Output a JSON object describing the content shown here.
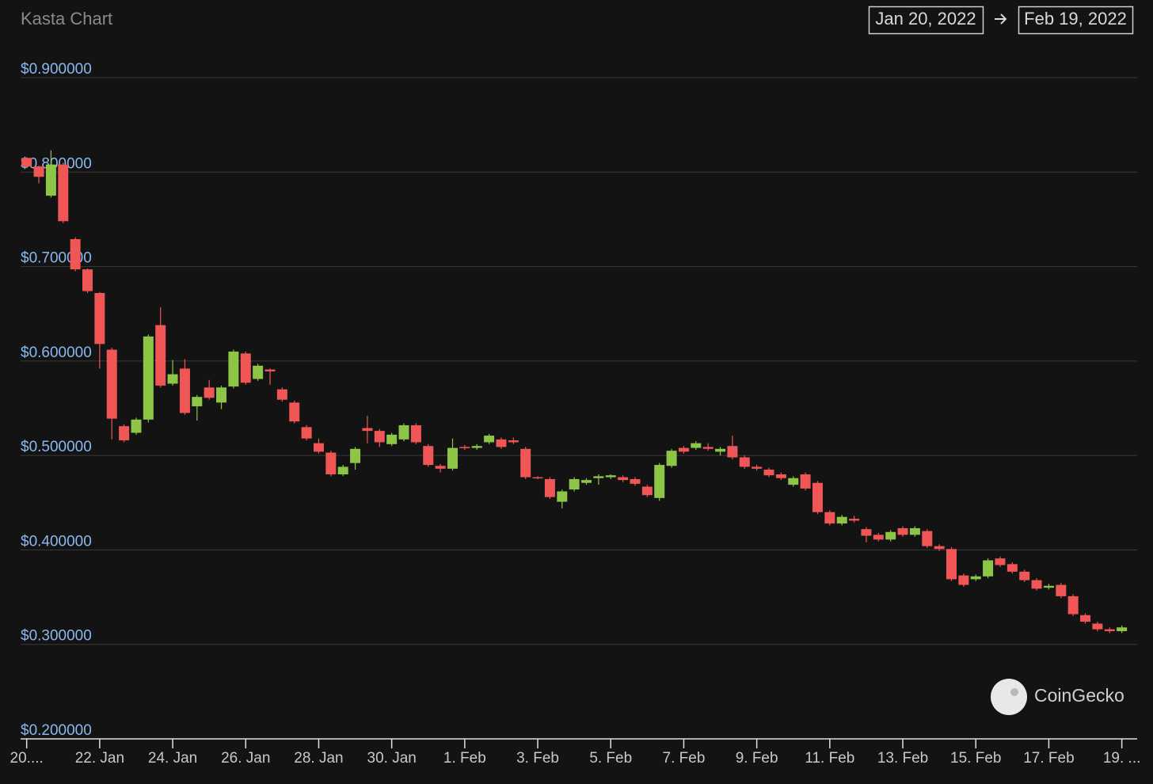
{
  "chart_data": {
    "type": "candlestick",
    "title": "Kasta Chart",
    "date_from": "Jan 20, 2022",
    "date_to": "Feb 19, 2022",
    "watermark": "CoinGecko",
    "up_color": "#8dc647",
    "down_color": "#f05656",
    "grid": true,
    "x": [
      0,
      8,
      16,
      24,
      32,
      40,
      48,
      56,
      64,
      72,
      80,
      88,
      96,
      104,
      112,
      120,
      128,
      136,
      144,
      152,
      160,
      168,
      176,
      184,
      192,
      200,
      208,
      216,
      224,
      232,
      240,
      248,
      256,
      264,
      272,
      280,
      288,
      296,
      304,
      312,
      320,
      328,
      336,
      344,
      352,
      360,
      368,
      376,
      384,
      392,
      400,
      408,
      416,
      424,
      432,
      440,
      448,
      456,
      464,
      472,
      480,
      488,
      496,
      504,
      512,
      520,
      528,
      536,
      544,
      552,
      560,
      568,
      576,
      584,
      592,
      600,
      608,
      616,
      624,
      632,
      640,
      648,
      656,
      664,
      672,
      680,
      688,
      696,
      704,
      712,
      720
    ],
    "open": [
      0.815,
      0.806,
      0.775,
      0.808,
      0.729,
      0.697,
      0.672,
      0.612,
      0.531,
      0.524,
      0.538,
      0.638,
      0.576,
      0.592,
      0.552,
      0.572,
      0.556,
      0.573,
      0.608,
      0.581,
      0.591,
      0.57,
      0.556,
      0.53,
      0.513,
      0.503,
      0.48,
      0.492,
      0.529,
      0.526,
      0.512,
      0.517,
      0.532,
      0.51,
      0.489,
      0.486,
      0.509,
      0.508,
      0.514,
      0.517,
      0.516,
      0.507,
      0.477,
      0.475,
      0.451,
      0.464,
      0.471,
      0.476,
      0.477,
      0.477,
      0.475,
      0.467,
      0.455,
      0.489,
      0.508,
      0.508,
      0.509,
      0.504,
      0.51,
      0.498,
      0.488,
      0.485,
      0.48,
      0.469,
      0.48,
      0.471,
      0.44,
      0.428,
      0.433,
      0.422,
      0.416,
      0.411,
      0.423,
      0.416,
      0.42,
      0.404,
      0.401,
      0.373,
      0.369,
      0.372,
      0.391,
      0.385,
      0.377,
      0.368,
      0.36,
      0.363,
      0.351,
      0.331,
      0.322,
      0.316,
      0.314
    ],
    "high": [
      0.816,
      0.807,
      0.823,
      0.81,
      0.731,
      0.698,
      0.673,
      0.614,
      0.533,
      0.54,
      0.628,
      0.657,
      0.601,
      0.602,
      0.564,
      0.58,
      0.574,
      0.612,
      0.61,
      0.597,
      0.592,
      0.572,
      0.558,
      0.532,
      0.518,
      0.505,
      0.49,
      0.509,
      0.542,
      0.528,
      0.524,
      0.534,
      0.534,
      0.512,
      0.491,
      0.518,
      0.511,
      0.512,
      0.523,
      0.519,
      0.519,
      0.509,
      0.478,
      0.477,
      0.464,
      0.477,
      0.476,
      0.48,
      0.48,
      0.479,
      0.477,
      0.469,
      0.492,
      0.507,
      0.51,
      0.515,
      0.513,
      0.509,
      0.521,
      0.5,
      0.49,
      0.487,
      0.482,
      0.478,
      0.482,
      0.473,
      0.442,
      0.437,
      0.436,
      0.424,
      0.418,
      0.421,
      0.425,
      0.425,
      0.422,
      0.406,
      0.403,
      0.375,
      0.374,
      0.391,
      0.393,
      0.387,
      0.379,
      0.37,
      0.364,
      0.365,
      0.353,
      0.333,
      0.324,
      0.318,
      0.32
    ],
    "low": [
      0.804,
      0.788,
      0.773,
      0.746,
      0.695,
      0.672,
      0.592,
      0.517,
      0.514,
      0.522,
      0.535,
      0.572,
      0.574,
      0.543,
      0.537,
      0.559,
      0.549,
      0.571,
      0.575,
      0.579,
      0.575,
      0.557,
      0.534,
      0.516,
      0.502,
      0.478,
      0.478,
      0.485,
      0.513,
      0.509,
      0.51,
      0.515,
      0.512,
      0.488,
      0.482,
      0.484,
      0.506,
      0.506,
      0.512,
      0.507,
      0.512,
      0.475,
      0.475,
      0.454,
      0.444,
      0.462,
      0.469,
      0.469,
      0.475,
      0.472,
      0.468,
      0.456,
      0.452,
      0.487,
      0.502,
      0.506,
      0.505,
      0.5,
      0.496,
      0.486,
      0.484,
      0.477,
      0.474,
      0.467,
      0.463,
      0.438,
      0.426,
      0.426,
      0.429,
      0.408,
      0.409,
      0.409,
      0.414,
      0.414,
      0.402,
      0.399,
      0.367,
      0.361,
      0.367,
      0.37,
      0.382,
      0.375,
      0.366,
      0.357,
      0.358,
      0.349,
      0.33,
      0.322,
      0.314,
      0.312,
      0.312
    ],
    "close": [
      0.806,
      0.795,
      0.808,
      0.748,
      0.697,
      0.674,
      0.618,
      0.539,
      0.516,
      0.538,
      0.626,
      0.574,
      0.586,
      0.545,
      0.562,
      0.561,
      0.572,
      0.61,
      0.577,
      0.595,
      0.589,
      0.559,
      0.536,
      0.518,
      0.504,
      0.48,
      0.488,
      0.507,
      0.526,
      0.514,
      0.522,
      0.532,
      0.514,
      0.49,
      0.486,
      0.508,
      0.508,
      0.51,
      0.521,
      0.509,
      0.514,
      0.477,
      0.476,
      0.456,
      0.462,
      0.475,
      0.474,
      0.478,
      0.479,
      0.474,
      0.47,
      0.458,
      0.49,
      0.505,
      0.504,
      0.513,
      0.507,
      0.507,
      0.498,
      0.488,
      0.486,
      0.479,
      0.476,
      0.476,
      0.465,
      0.44,
      0.428,
      0.435,
      0.431,
      0.415,
      0.411,
      0.419,
      0.416,
      0.423,
      0.404,
      0.401,
      0.369,
      0.363,
      0.372,
      0.389,
      0.384,
      0.377,
      0.368,
      0.359,
      0.362,
      0.351,
      0.332,
      0.324,
      0.316,
      0.314,
      0.318
    ],
    "xlim": [
      -4,
      728
    ],
    "xticks": [
      {
        "value": 0,
        "label": "20...."
      },
      {
        "value": 48,
        "label": "22. Jan"
      },
      {
        "value": 96,
        "label": "24. Jan"
      },
      {
        "value": 144,
        "label": "26. Jan"
      },
      {
        "value": 192,
        "label": "28. Jan"
      },
      {
        "value": 240,
        "label": "30. Jan"
      },
      {
        "value": 288,
        "label": "1. Feb"
      },
      {
        "value": 336,
        "label": "3. Feb"
      },
      {
        "value": 384,
        "label": "5. Feb"
      },
      {
        "value": 432,
        "label": "7. Feb"
      },
      {
        "value": 480,
        "label": "9. Feb"
      },
      {
        "value": 528,
        "label": "11. Feb"
      },
      {
        "value": 576,
        "label": "13. Feb"
      },
      {
        "value": 624,
        "label": "15. Feb"
      },
      {
        "value": 672,
        "label": "17. Feb"
      },
      {
        "value": 720,
        "label": "19. ..."
      }
    ],
    "ylim": [
      0.2,
      0.9
    ],
    "yticks": [
      {
        "value": 0.9,
        "label": "$0.900000"
      },
      {
        "value": 0.8,
        "label": "$0.800000"
      },
      {
        "value": 0.7,
        "label": "$0.700000"
      },
      {
        "value": 0.6,
        "label": "$0.600000"
      },
      {
        "value": 0.5,
        "label": "$0.500000"
      },
      {
        "value": 0.4,
        "label": "$0.400000"
      },
      {
        "value": 0.3,
        "label": "$0.300000"
      },
      {
        "value": 0.2,
        "label": "$0.200000"
      }
    ]
  }
}
